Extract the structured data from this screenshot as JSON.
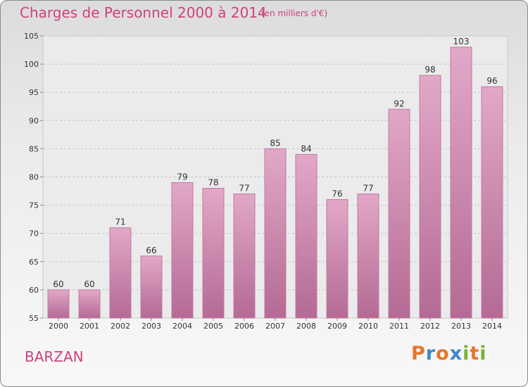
{
  "chart_data": {
    "type": "bar",
    "title": "Charges de Personnel 2000 à 2014",
    "subtitle": "(en milliers d'€)",
    "categories": [
      "2000",
      "2001",
      "2002",
      "2003",
      "2004",
      "2005",
      "2006",
      "2007",
      "2008",
      "2009",
      "2010",
      "2011",
      "2012",
      "2013",
      "2014"
    ],
    "values": [
      60,
      60,
      71,
      66,
      79,
      78,
      77,
      85,
      84,
      76,
      77,
      92,
      98,
      103,
      96
    ],
    "ylim": [
      55,
      105
    ],
    "yticks": [
      55,
      60,
      65,
      70,
      75,
      80,
      85,
      90,
      95,
      100,
      105
    ],
    "grid": true,
    "bar_color": "#d888b0",
    "title_color": "#d04080"
  },
  "commune": "BARZAN",
  "logo": {
    "letters": [
      {
        "ch": "P",
        "color": "#e8742a"
      },
      {
        "ch": "r",
        "color": "#3b88c8"
      },
      {
        "ch": "o",
        "color": "#e8742a"
      },
      {
        "ch": "x",
        "color": "#3b88c8"
      },
      {
        "ch": "i",
        "color": "#7ab32e"
      },
      {
        "ch": "t",
        "color": "#e8742a"
      },
      {
        "ch": "i",
        "color": "#7ab32e"
      }
    ]
  }
}
